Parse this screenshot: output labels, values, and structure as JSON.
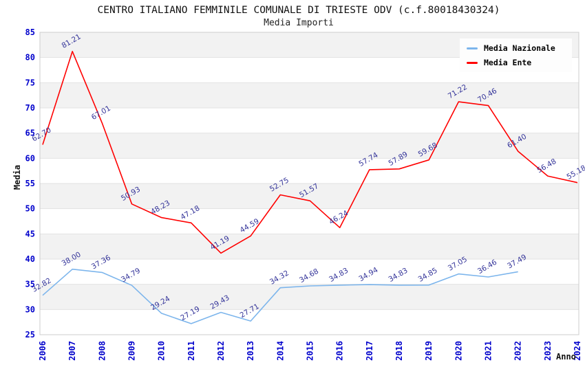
{
  "chart_data": {
    "type": "line",
    "title": "CENTRO ITALIANO FEMMINILE COMUNALE DI TRIESTE ODV (c.f.80018430324)",
    "subtitle": "Media Importi",
    "xlabel": "Anno",
    "ylabel": "Media",
    "ylim": [
      25,
      85
    ],
    "y_tick_step": 5,
    "grid": true,
    "legend_position": "top-right",
    "x": [
      2006,
      2007,
      2008,
      2009,
      2010,
      2011,
      2012,
      2013,
      2014,
      2015,
      2016,
      2017,
      2018,
      2019,
      2020,
      2021,
      2022,
      2023,
      2024
    ],
    "series": [
      {
        "name": "Media Nazionale",
        "color": "#7cb5ec",
        "values": [
          32.82,
          38.0,
          37.36,
          34.79,
          29.24,
          27.19,
          29.43,
          27.71,
          34.32,
          34.68,
          34.83,
          34.94,
          34.83,
          34.85,
          37.05,
          36.46,
          37.49,
          null,
          null
        ]
      },
      {
        "name": "Media Ente",
        "color": "#ff0000",
        "values": [
          62.7,
          81.21,
          67.01,
          50.93,
          48.23,
          47.18,
          41.19,
          44.59,
          52.75,
          51.57,
          46.24,
          57.74,
          57.89,
          59.68,
          71.22,
          70.46,
          61.4,
          56.48,
          55.18
        ]
      }
    ],
    "colors": {
      "tick_label": "#0000cc",
      "point_label": "#333399",
      "band_fill": "#f2f2f2",
      "grid_line": "#e2e2e2",
      "plot_border": "#cccccc",
      "background": "#ffffff"
    }
  }
}
